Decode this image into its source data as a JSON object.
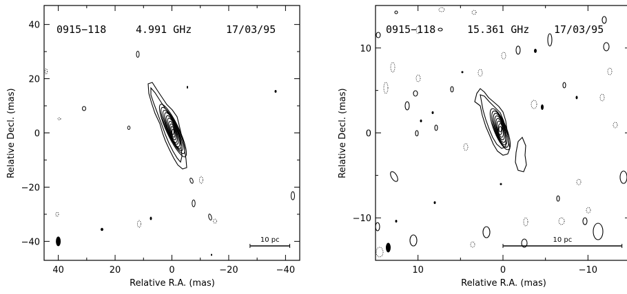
{
  "panels": [
    {
      "source": "0915−118",
      "frequency": "4.991 GHz",
      "date": "17/03/95",
      "xlabel": "Relative R.A. (mas)",
      "ylabel": "Relative Decl. (mas)",
      "xlim": [
        45,
        -45
      ],
      "ylim": [
        -47,
        47
      ],
      "xticks": [
        40,
        20,
        0,
        -20,
        -40
      ],
      "yticks": [
        40,
        20,
        0,
        -20,
        -40
      ],
      "xtick_labels": [
        "40",
        "20",
        "0",
        "−20",
        "−40"
      ],
      "ytick_labels": [
        "40",
        "20",
        "0",
        "−20",
        "−40"
      ],
      "scale_bar_label": "10 pc",
      "scale_bar_range": [
        -27.5,
        -41.5
      ],
      "beam_center": [
        40,
        -40
      ]
    },
    {
      "source": "0915−118",
      "frequency": "15.361 GHz",
      "date": "17/03/95",
      "xlabel": "Relative R.A. (mas)",
      "ylabel": "Relative Decl. (mas)",
      "xlim": [
        15,
        -15
      ],
      "ylim": [
        -15,
        15
      ],
      "xticks": [
        10,
        0,
        -10
      ],
      "yticks": [
        10,
        0,
        -10
      ],
      "xtick_labels": [
        "10",
        "0",
        "−10"
      ],
      "ytick_labels": [
        "10",
        "0",
        "−10"
      ],
      "scale_bar_label": "10 pc",
      "scale_bar_range": [
        0,
        -14
      ],
      "beam_center": [
        13.5,
        -13.5
      ]
    }
  ]
}
